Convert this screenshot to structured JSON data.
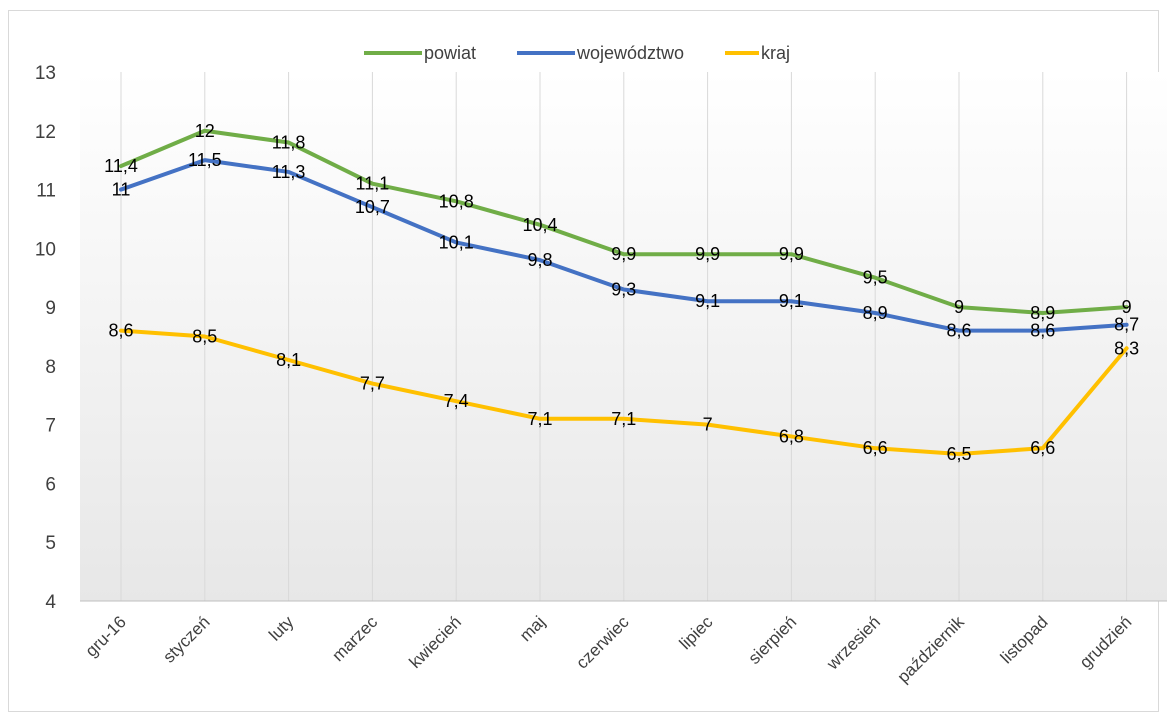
{
  "chart_data": {
    "type": "line",
    "categories": [
      "gru-16",
      "styczeń",
      "luty",
      "marzec",
      "kwiecień",
      "maj",
      "czerwiec",
      "lipiec",
      "sierpień",
      "wrzesień",
      "październik",
      "listopad",
      "grudzień"
    ],
    "series": [
      {
        "name": "powiat",
        "color": "#70ad47",
        "values": [
          11.4,
          12,
          11.8,
          11.1,
          10.8,
          10.4,
          9.9,
          9.9,
          9.9,
          9.5,
          9,
          8.9,
          9
        ],
        "labels": [
          "11,4",
          "12",
          "11,8",
          "11,1",
          "10,8",
          "10,4",
          "9,9",
          "9,9",
          "9,9",
          "9,5",
          "9",
          "8,9",
          "9"
        ]
      },
      {
        "name": "województwo",
        "color": "#4472c4",
        "values": [
          11,
          11.5,
          11.3,
          10.7,
          10.1,
          9.8,
          9.3,
          9.1,
          9.1,
          8.9,
          8.6,
          8.6,
          8.7
        ],
        "labels": [
          "11",
          "11,5",
          "11,3",
          "10,7",
          "10,1",
          "9,8",
          "9,3",
          "9,1",
          "9,1",
          "8,9",
          "8,6",
          "8,6",
          "8,7"
        ]
      },
      {
        "name": "kraj",
        "color": "#ffc000",
        "values": [
          8.6,
          8.5,
          8.1,
          7.7,
          7.4,
          7.1,
          7.1,
          7,
          6.8,
          6.6,
          6.5,
          6.6,
          8.3
        ],
        "labels": [
          "8,6",
          "8,5",
          "8,1",
          "7,7",
          "7,4",
          "7,1",
          "7,1",
          "7",
          "6,8",
          "6,6",
          "6,5",
          "6,6",
          "8,3"
        ]
      }
    ],
    "ylim": [
      4,
      13
    ],
    "yticks": [
      "4",
      "5",
      "6",
      "7",
      "8",
      "9",
      "10",
      "11",
      "12",
      "13"
    ],
    "title": "",
    "xlabel": "",
    "ylabel": "",
    "grid": "vertical",
    "legend": "top-center",
    "background": "gradient white to light gray"
  }
}
